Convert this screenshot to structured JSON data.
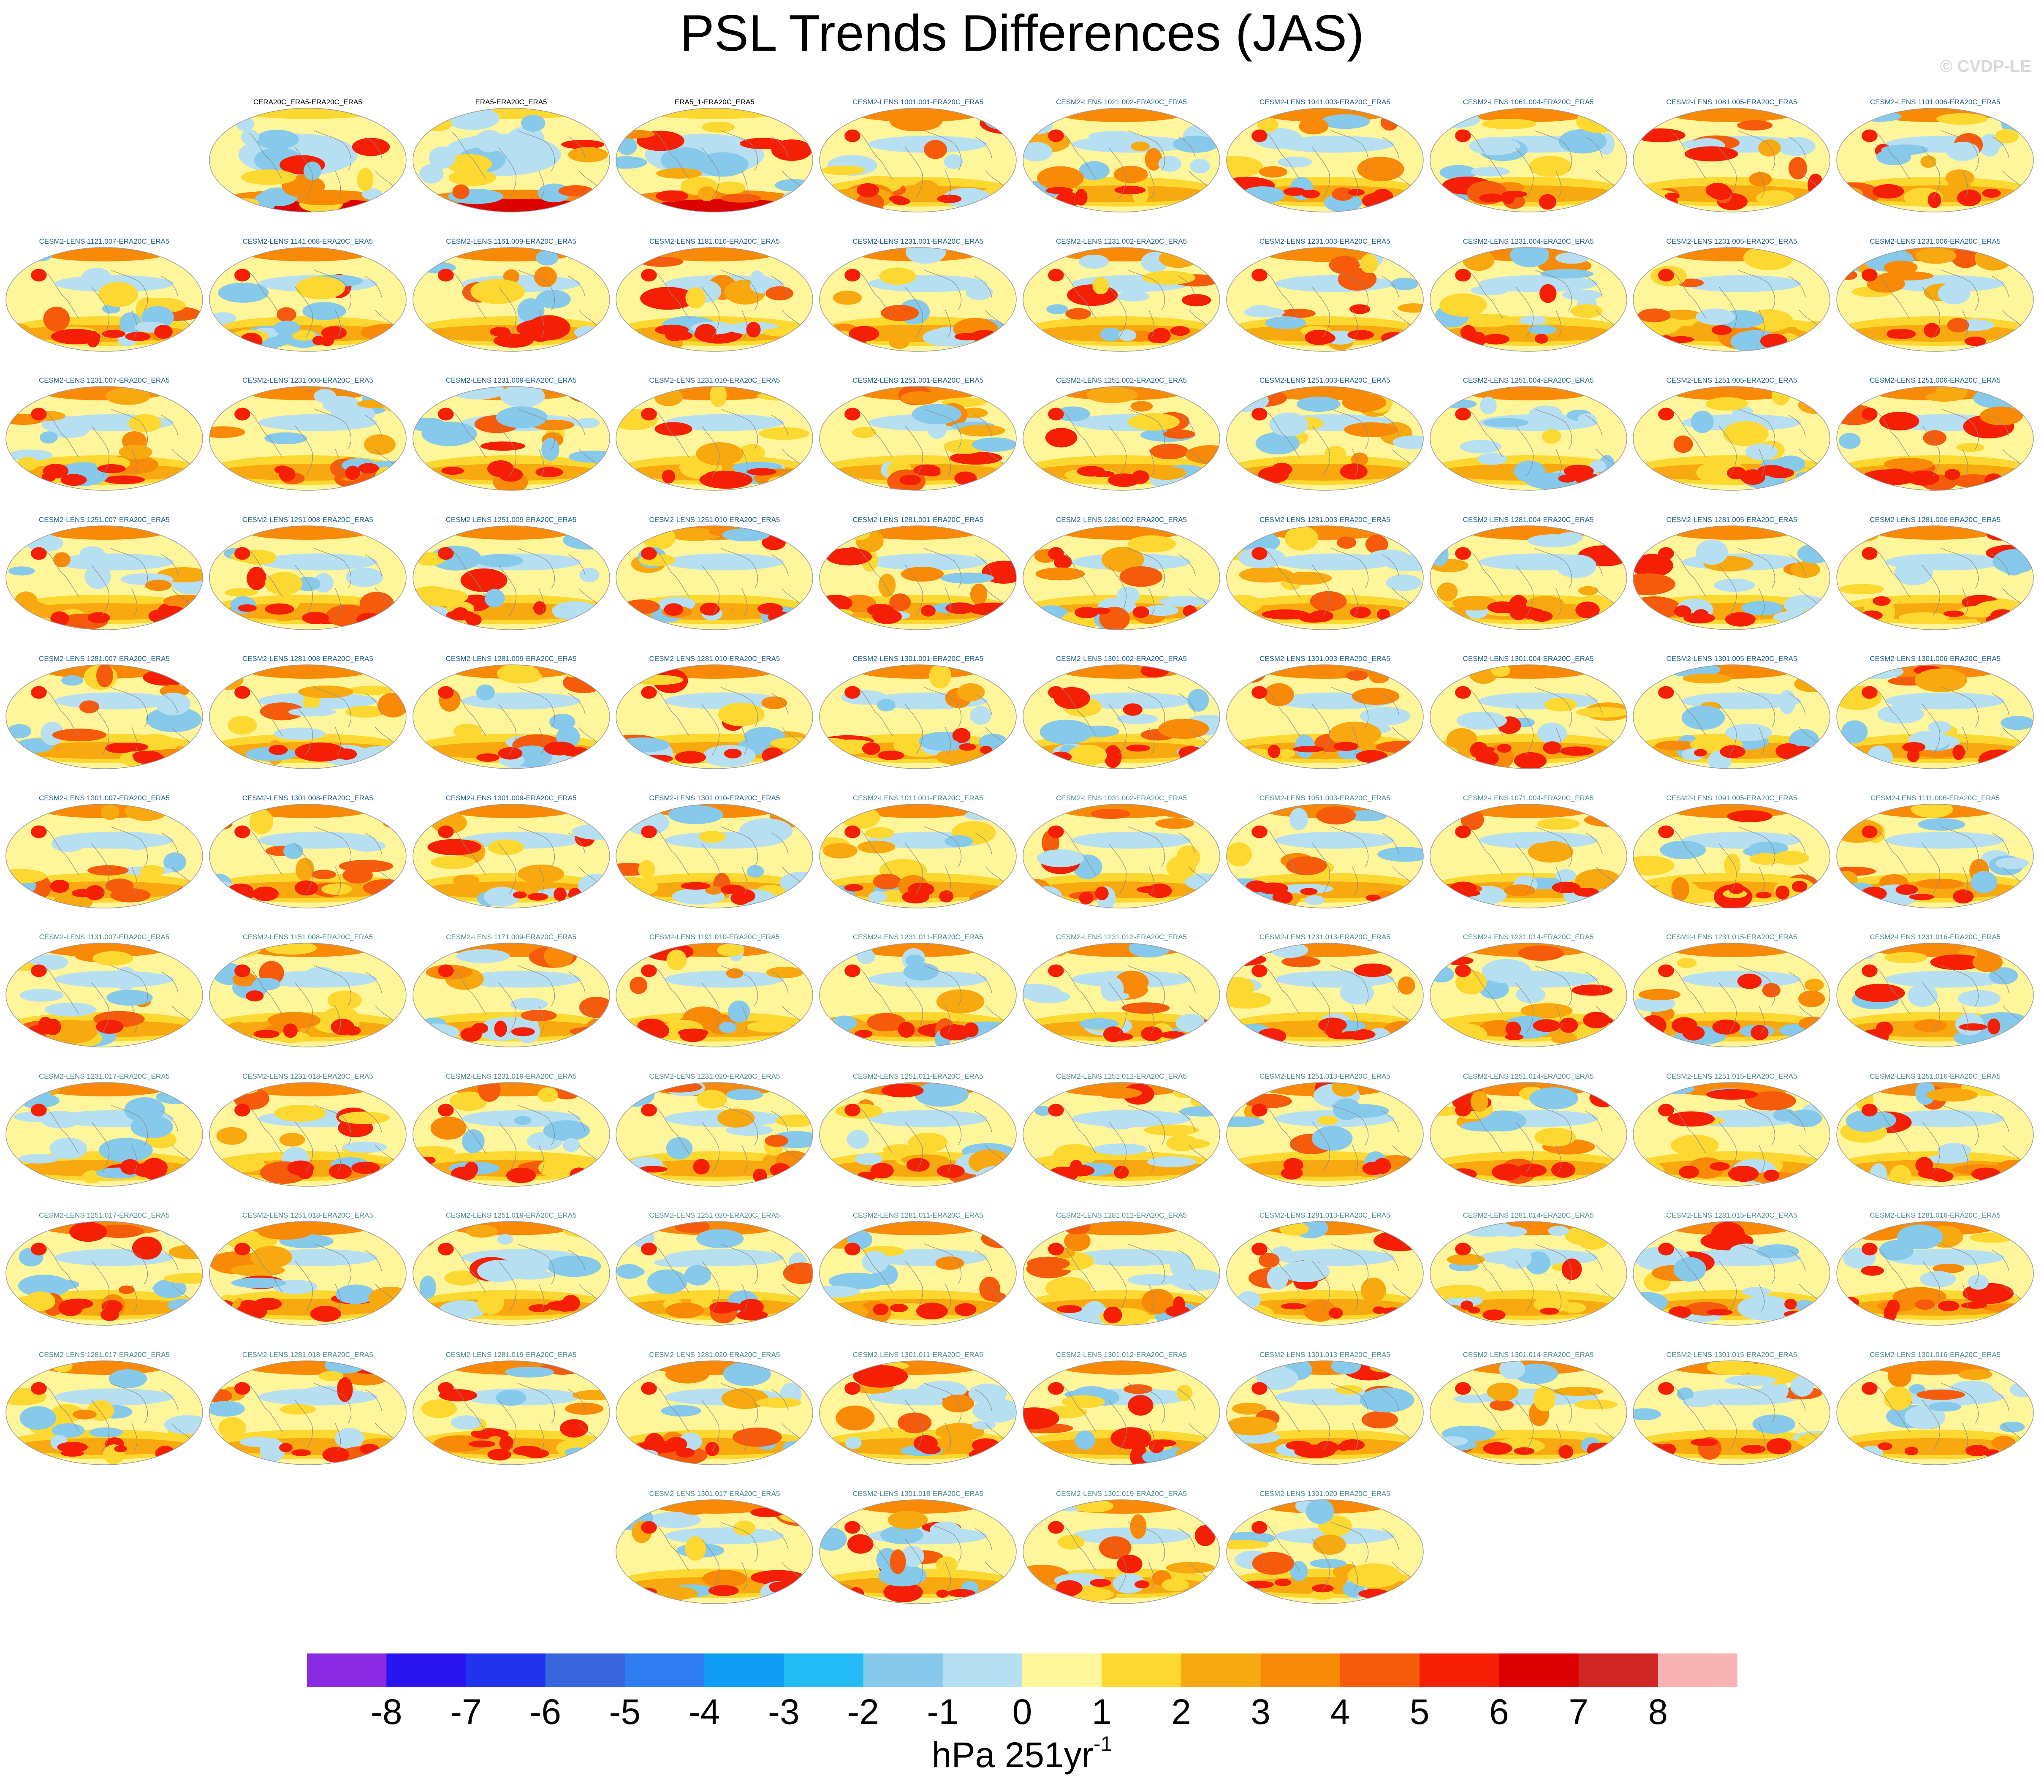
{
  "title": "PSL Trends Differences (JAS)",
  "watermark": "© CVDP-LE",
  "colorbar": {
    "units_prefix": "hPa 251yr",
    "units_superscript": "-1",
    "levels": [
      -8,
      -7,
      -6,
      -5,
      -4,
      -3,
      -2,
      -1,
      0,
      1,
      2,
      3,
      4,
      5,
      6,
      7,
      8
    ],
    "colors": [
      "#8a2be2",
      "#2a14f0",
      "#2233ee",
      "#3a66dd",
      "#2f7bf0",
      "#0f9cf5",
      "#22bbf5",
      "#86c9ea",
      "#b6dff2",
      "#fff59a",
      "#fdd831",
      "#f8a90f",
      "#f88a08",
      "#f55b0a",
      "#f51f06",
      "#dc0000",
      "#d02525",
      "#f8b4b4"
    ]
  },
  "chart_data": {
    "type": "heatmap",
    "description_label": "Panel titles",
    "panels": [
      {
        "label": "CERA20C_ERA5-ERA20C_ERA5",
        "group": "obs"
      },
      {
        "label": "ERA5-ERA20C_ERA5",
        "group": "obs"
      },
      {
        "label": "ERA5_1-ERA20C_ERA5",
        "group": "obs"
      },
      {
        "label": "CESM2-LENS 1001.001-ERA20C_ERA5",
        "group": "a"
      },
      {
        "label": "CESM2-LENS 1021.002-ERA20C_ERA5",
        "group": "a"
      },
      {
        "label": "CESM2-LENS 1041.003-ERA20C_ERA5",
        "group": "a"
      },
      {
        "label": "CESM2-LENS 1061.004-ERA20C_ERA5",
        "group": "a"
      },
      {
        "label": "CESM2-LENS 1081.005-ERA20C_ERA5",
        "group": "a"
      },
      {
        "label": "CESM2-LENS 1101.006-ERA20C_ERA5",
        "group": "a"
      },
      {
        "label": "CESM2-LENS 1121.007-ERA20C_ERA5",
        "group": "a"
      },
      {
        "label": "CESM2-LENS 1141.008-ERA20C_ERA5",
        "group": "a"
      },
      {
        "label": "CESM2-LENS 1161.009-ERA20C_ERA5",
        "group": "a"
      },
      {
        "label": "CESM2-LENS 1181.010-ERA20C_ERA5",
        "group": "a"
      },
      {
        "label": "CESM2-LENS 1231.001-ERA20C_ERA5",
        "group": "a"
      },
      {
        "label": "CESM2-LENS 1231.002-ERA20C_ERA5",
        "group": "a"
      },
      {
        "label": "CESM2-LENS 1231.003-ERA20C_ERA5",
        "group": "a"
      },
      {
        "label": "CESM2-LENS 1231.004-ERA20C_ERA5",
        "group": "a"
      },
      {
        "label": "CESM2-LENS 1231.005-ERA20C_ERA5",
        "group": "a"
      },
      {
        "label": "CESM2-LENS 1231.006-ERA20C_ERA5",
        "group": "a"
      },
      {
        "label": "CESM2-LENS 1231.007-ERA20C_ERA5",
        "group": "a"
      },
      {
        "label": "CESM2-LENS 1231.008-ERA20C_ERA5",
        "group": "a"
      },
      {
        "label": "CESM2-LENS 1231.009-ERA20C_ERA5",
        "group": "a"
      },
      {
        "label": "CESM2-LENS 1231.010-ERA20C_ERA5",
        "group": "a"
      },
      {
        "label": "CESM2-LENS 1251.001-ERA20C_ERA5",
        "group": "a"
      },
      {
        "label": "CESM2-LENS 1251.002-ERA20C_ERA5",
        "group": "a"
      },
      {
        "label": "CESM2-LENS 1251.003-ERA20C_ERA5",
        "group": "a"
      },
      {
        "label": "CESM2-LENS 1251.004-ERA20C_ERA5",
        "group": "a"
      },
      {
        "label": "CESM2-LENS 1251.005-ERA20C_ERA5",
        "group": "a"
      },
      {
        "label": "CESM2-LENS 1251.006-ERA20C_ERA5",
        "group": "a"
      },
      {
        "label": "CESM2-LENS 1251.007-ERA20C_ERA5",
        "group": "a"
      },
      {
        "label": "CESM2-LENS 1251.008-ERA20C_ERA5",
        "group": "a"
      },
      {
        "label": "CESM2-LENS 1251.009-ERA20C_ERA5",
        "group": "a"
      },
      {
        "label": "CESM2-LENS 1251.010-ERA20C_ERA5",
        "group": "a"
      },
      {
        "label": "CESM2-LENS 1281.001-ERA20C_ERA5",
        "group": "a"
      },
      {
        "label": "CESM2-LENS 1281.002-ERA20C_ERA5",
        "group": "a"
      },
      {
        "label": "CESM2-LENS 1281.003-ERA20C_ERA5",
        "group": "a"
      },
      {
        "label": "CESM2-LENS 1281.004-ERA20C_ERA5",
        "group": "a"
      },
      {
        "label": "CESM2-LENS 1281.005-ERA20C_ERA5",
        "group": "a"
      },
      {
        "label": "CESM2-LENS 1281.006-ERA20C_ERA5",
        "group": "a"
      },
      {
        "label": "CESM2-LENS 1281.007-ERA20C_ERA5",
        "group": "a"
      },
      {
        "label": "CESM2-LENS 1281.008-ERA20C_ERA5",
        "group": "a"
      },
      {
        "label": "CESM2-LENS 1281.009-ERA20C_ERA5",
        "group": "a"
      },
      {
        "label": "CESM2-LENS 1281.010-ERA20C_ERA5",
        "group": "a"
      },
      {
        "label": "CESM2-LENS 1301.001-ERA20C_ERA5",
        "group": "a"
      },
      {
        "label": "CESM2-LENS 1301.002-ERA20C_ERA5",
        "group": "a"
      },
      {
        "label": "CESM2-LENS 1301.003-ERA20C_ERA5",
        "group": "a"
      },
      {
        "label": "CESM2-LENS 1301.004-ERA20C_ERA5",
        "group": "a"
      },
      {
        "label": "CESM2-LENS 1301.005-ERA20C_ERA5",
        "group": "a"
      },
      {
        "label": "CESM2-LENS 1301.006-ERA20C_ERA5",
        "group": "a"
      },
      {
        "label": "CESM2-LENS 1301.007-ERA20C_ERA5",
        "group": "a"
      },
      {
        "label": "CESM2-LENS 1301.008-ERA20C_ERA5",
        "group": "a"
      },
      {
        "label": "CESM2-LENS 1301.009-ERA20C_ERA5",
        "group": "a"
      },
      {
        "label": "CESM2-LENS 1301.010-ERA20C_ERA5",
        "group": "a"
      },
      {
        "label": "CESM2-LENS 1011.001-ERA20C_ERA5",
        "group": "b"
      },
      {
        "label": "CESM2-LENS 1031.002-ERA20C_ERA5",
        "group": "b"
      },
      {
        "label": "CESM2-LENS 1051.003-ERA20C_ERA5",
        "group": "b"
      },
      {
        "label": "CESM2-LENS 1071.004-ERA20C_ERA5",
        "group": "b"
      },
      {
        "label": "CESM2-LENS 1091.005-ERA20C_ERA5",
        "group": "b"
      },
      {
        "label": "CESM2-LENS 1111.006-ERA20C_ERA5",
        "group": "b"
      },
      {
        "label": "CESM2-LENS 1131.007-ERA20C_ERA5",
        "group": "b"
      },
      {
        "label": "CESM2-LENS 1151.008-ERA20C_ERA5",
        "group": "b"
      },
      {
        "label": "CESM2-LENS 1171.009-ERA20C_ERA5",
        "group": "b"
      },
      {
        "label": "CESM2-LENS 1191.010-ERA20C_ERA5",
        "group": "b"
      },
      {
        "label": "CESM2-LENS 1231.011-ERA20C_ERA5",
        "group": "b"
      },
      {
        "label": "CESM2-LENS 1231.012-ERA20C_ERA5",
        "group": "b"
      },
      {
        "label": "CESM2-LENS 1231.013-ERA20C_ERA5",
        "group": "b"
      },
      {
        "label": "CESM2-LENS 1231.014-ERA20C_ERA5",
        "group": "b"
      },
      {
        "label": "CESM2-LENS 1231.015-ERA20C_ERA5",
        "group": "b"
      },
      {
        "label": "CESM2-LENS 1231.016-ERA20C_ERA5",
        "group": "b"
      },
      {
        "label": "CESM2-LENS 1231.017-ERA20C_ERA5",
        "group": "b"
      },
      {
        "label": "CESM2-LENS 1231.018-ERA20C_ERA5",
        "group": "b"
      },
      {
        "label": "CESM2-LENS 1231.019-ERA20C_ERA5",
        "group": "b"
      },
      {
        "label": "CESM2-LENS 1231.020-ERA20C_ERA5",
        "group": "b"
      },
      {
        "label": "CESM2-LENS 1251.011-ERA20C_ERA5",
        "group": "b"
      },
      {
        "label": "CESM2-LENS 1251.012-ERA20C_ERA5",
        "group": "b"
      },
      {
        "label": "CESM2-LENS 1251.013-ERA20C_ERA5",
        "group": "b"
      },
      {
        "label": "CESM2-LENS 1251.014-ERA20C_ERA5",
        "group": "b"
      },
      {
        "label": "CESM2-LENS 1251.015-ERA20C_ERA5",
        "group": "b"
      },
      {
        "label": "CESM2-LENS 1251.016-ERA20C_ERA5",
        "group": "b"
      },
      {
        "label": "CESM2-LENS 1251.017-ERA20C_ERA5",
        "group": "b"
      },
      {
        "label": "CESM2-LENS 1251.018-ERA20C_ERA5",
        "group": "b"
      },
      {
        "label": "CESM2-LENS 1251.019-ERA20C_ERA5",
        "group": "b"
      },
      {
        "label": "CESM2-LENS 1251.020-ERA20C_ERA5",
        "group": "b"
      },
      {
        "label": "CESM2-LENS 1281.011-ERA20C_ERA5",
        "group": "b"
      },
      {
        "label": "CESM2-LENS 1281.012-ERA20C_ERA5",
        "group": "b"
      },
      {
        "label": "CESM2-LENS 1281.013-ERA20C_ERA5",
        "group": "b"
      },
      {
        "label": "CESM2-LENS 1281.014-ERA20C_ERA5",
        "group": "b"
      },
      {
        "label": "CESM2-LENS 1281.015-ERA20C_ERA5",
        "group": "b"
      },
      {
        "label": "CESM2-LENS 1281.016-ERA20C_ERA5",
        "group": "b"
      },
      {
        "label": "CESM2-LENS 1281.017-ERA20C_ERA5",
        "group": "b"
      },
      {
        "label": "CESM2-LENS 1281.018-ERA20C_ERA5",
        "group": "b"
      },
      {
        "label": "CESM2-LENS 1281.019-ERA20C_ERA5",
        "group": "b"
      },
      {
        "label": "CESM2-LENS 1281.020-ERA20C_ERA5",
        "group": "b"
      },
      {
        "label": "CESM2-LENS 1301.011-ERA20C_ERA5",
        "group": "b"
      },
      {
        "label": "CESM2-LENS 1301.012-ERA20C_ERA5",
        "group": "b"
      },
      {
        "label": "CESM2-LENS 1301.013-ERA20C_ERA5",
        "group": "b"
      },
      {
        "label": "CESM2-LENS 1301.014-ERA20C_ERA5",
        "group": "b"
      },
      {
        "label": "CESM2-LENS 1301.015-ERA20C_ERA5",
        "group": "b"
      },
      {
        "label": "CESM2-LENS 1301.016-ERA20C_ERA5",
        "group": "b"
      },
      {
        "label": "CESM2-LENS 1301.017-ERA20C_ERA5",
        "group": "b"
      },
      {
        "label": "CESM2-LENS 1301.018-ERA20C_ERA5",
        "group": "b"
      },
      {
        "label": "CESM2-LENS 1301.019-ERA20C_ERA5",
        "group": "b"
      },
      {
        "label": "CESM2-LENS 1301.020-ERA20C_ERA5",
        "group": "b"
      }
    ],
    "label_colors": {
      "obs": "#000000",
      "a": "#1f5f8a",
      "b": "#4a8a8a"
    }
  }
}
